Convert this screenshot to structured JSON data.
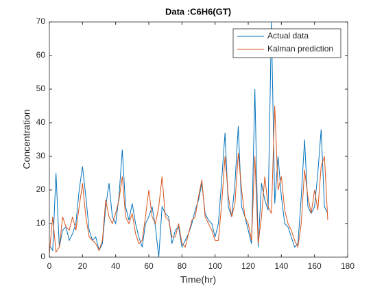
{
  "chart_data": {
    "type": "line",
    "title": "Data :C6H6(GT)",
    "x_label": "Time(hr)",
    "y_label": "Concentration",
    "x": [
      0,
      2,
      4,
      6,
      8,
      10,
      12,
      14,
      16,
      18,
      20,
      22,
      24,
      26,
      28,
      30,
      32,
      34,
      36,
      38,
      40,
      42,
      44,
      46,
      48,
      50,
      52,
      54,
      56,
      58,
      60,
      62,
      64,
      66,
      68,
      70,
      72,
      74,
      76,
      78,
      80,
      82,
      84,
      86,
      88,
      90,
      92,
      94,
      96,
      98,
      100,
      102,
      104,
      106,
      108,
      110,
      112,
      114,
      116,
      118,
      120,
      122,
      124,
      126,
      128,
      130,
      132,
      134,
      136,
      138,
      140,
      142,
      144,
      146,
      148,
      150,
      152,
      154,
      156,
      158,
      160,
      162,
      164,
      166,
      168
    ],
    "series": [
      {
        "name": "Actual data",
        "color": "#0072bd",
        "values": [
          3.5,
          2,
          25,
          3,
          8,
          9,
          5,
          7,
          10,
          20,
          27,
          18,
          8,
          5,
          6,
          2,
          4,
          15,
          22,
          12,
          10,
          18,
          32,
          15,
          11,
          16,
          10,
          6,
          3,
          10,
          12,
          15,
          9,
          0,
          15,
          13,
          12,
          4,
          8,
          9,
          3,
          5,
          7,
          10,
          14,
          17,
          22,
          13,
          11,
          10,
          6,
          10,
          23,
          37,
          15,
          12,
          22,
          39,
          15,
          12,
          8,
          4,
          50,
          3,
          22,
          17,
          14,
          70,
          16,
          30,
          18,
          10,
          9,
          6,
          3,
          4,
          18,
          35,
          15,
          13,
          15,
          25,
          38,
          15,
          13
        ]
      },
      {
        "name": "Kalman prediction",
        "color": "#d95319",
        "values": [
          1,
          12,
          1.5,
          3,
          12,
          9,
          8,
          12,
          8,
          15,
          22,
          12,
          6,
          5,
          4,
          2,
          5,
          17,
          12,
          10,
          13,
          17,
          24,
          12,
          10,
          13,
          7,
          4,
          5,
          12,
          20,
          12,
          10,
          15,
          24,
          12,
          11,
          6,
          6,
          10,
          4,
          3,
          7,
          11,
          12,
          18,
          23,
          12,
          10,
          8,
          5,
          5,
          16,
          30,
          18,
          12,
          16,
          31,
          20,
          12,
          10,
          5,
          30,
          4,
          12,
          24,
          15,
          13,
          45,
          20,
          24,
          14,
          10,
          8,
          5,
          3,
          10,
          26,
          18,
          13,
          20,
          14,
          27,
          30,
          11
        ]
      }
    ],
    "xlim": [
      0,
      180
    ],
    "xticks": [
      0,
      20,
      40,
      60,
      80,
      100,
      120,
      140,
      160,
      180
    ],
    "ylim": [
      0,
      70
    ],
    "yticks": [
      0,
      10,
      20,
      30,
      40,
      50,
      60,
      70
    ],
    "legend": "northeast"
  }
}
